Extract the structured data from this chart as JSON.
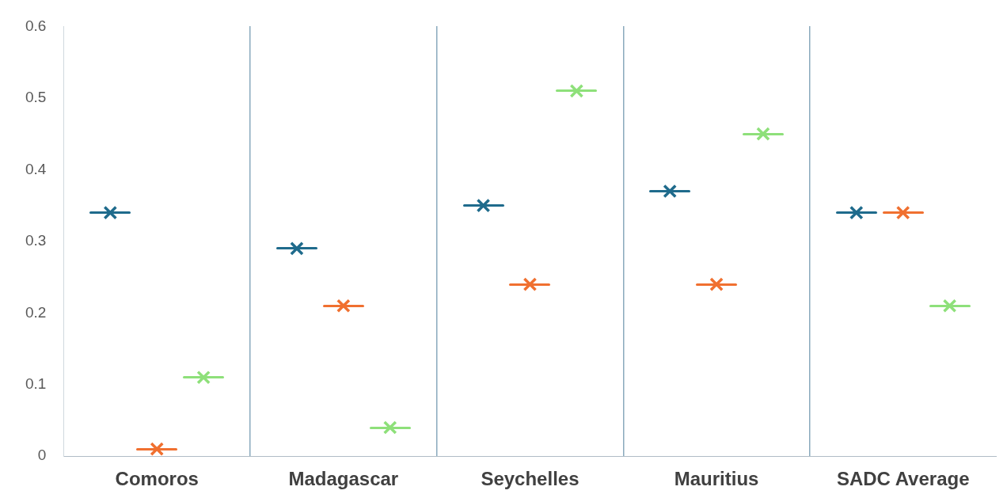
{
  "chart_data": {
    "type": "scatter",
    "categories": [
      "Comoros",
      "Madagascar",
      "Seychelles",
      "Mauritius",
      "SADC Average"
    ],
    "series": [
      {
        "color": "#1f6b8c",
        "values": [
          0.34,
          0.29,
          0.35,
          0.37,
          0.34
        ]
      },
      {
        "color": "#f07030",
        "values": [
          0.01,
          0.21,
          0.24,
          0.24,
          0.34
        ]
      },
      {
        "color": "#8ee07a",
        "values": [
          0.11,
          0.04,
          0.51,
          0.45,
          0.21
        ]
      }
    ],
    "ylim": [
      0,
      0.6
    ],
    "yticks": [
      0,
      0.1,
      0.2,
      0.3,
      0.4,
      0.5,
      0.6
    ],
    "grid": "x",
    "legend": false,
    "marker": "cross"
  }
}
